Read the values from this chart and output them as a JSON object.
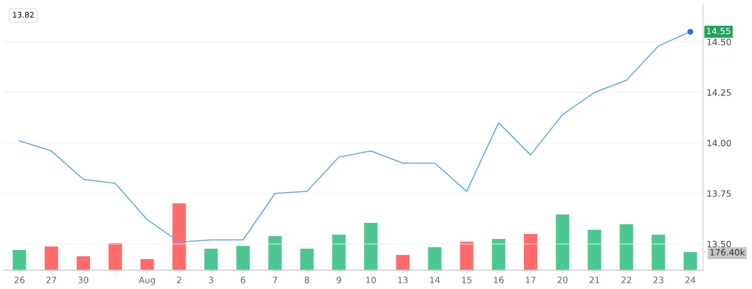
{
  "chart_data": {
    "type": "line",
    "categories": [
      "26",
      "27",
      "30",
      null,
      "Aug",
      "2",
      "3",
      "6",
      "7",
      "8",
      "9",
      "10",
      "13",
      "14",
      "15",
      "16",
      "17",
      "20",
      "21",
      "22",
      "23",
      "24"
    ],
    "series": [
      {
        "type": "bar",
        "axis": "y2",
        "values": [
          197,
          231,
          136,
          265,
          109,
          651,
          210,
          237,
          332,
          210,
          346,
          461,
          149,
          224,
          278,
          305,
          353,
          543,
          394,
          448,
          346,
          176.4
        ],
        "colors": [
          "#4cc790",
          "#ff6b6b",
          "#ff6b6b",
          "#ff6b6b",
          "#ff6b6b",
          "#ff6b6b",
          "#4cc790",
          "#4cc790",
          "#4cc790",
          "#4cc790",
          "#4cc790",
          "#4cc790",
          "#ff6b6b",
          "#4cc790",
          "#ff6b6b",
          "#4cc790",
          "#ff6b6b",
          "#4cc790",
          "#4cc790",
          "#4cc790",
          "#4cc790",
          "#4cc790"
        ]
      },
      {
        "color": "#5ba7e0",
        "values": [
          14.01,
          13.96,
          13.82,
          13.8,
          13.62,
          13.51,
          13.52,
          13.52,
          13.75,
          13.76,
          13.93,
          13.96,
          13.9,
          13.9,
          13.76,
          14.1,
          13.94,
          14.14,
          14.25,
          14.31,
          14.48,
          14.55
        ]
      }
    ],
    "ylim": [
      13.37,
      14.69
    ],
    "yticks": [
      {
        "value": 13.5,
        "label": "13.50"
      },
      {
        "value": 13.75,
        "label": "13.75"
      },
      {
        "value": 14.0,
        "label": "14.00"
      },
      14.25,
      {
        "value": 14.5,
        "label": "14.50"
      }
    ],
    "y2lim": [
      0,
      2600
    ],
    "y2ticks": [
      {
        "value": 176.4,
        "label": "176.40k"
      }
    ],
    "grid": "y",
    "marker": "none",
    "line_style": "solid",
    "annotations": [
      "13.82",
      {
        "text": "14.55",
        "x": "24",
        "y": 14.55
      }
    ]
  }
}
